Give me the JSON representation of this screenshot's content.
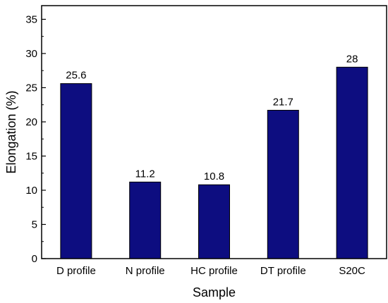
{
  "chart_data": {
    "type": "bar",
    "title": "",
    "xlabel": "Sample",
    "ylabel": "Elongation (%)",
    "categories": [
      "D profile",
      "N profile",
      "HC profile",
      "DT profile",
      "S20C"
    ],
    "values": [
      25.6,
      11.2,
      10.8,
      21.7,
      28
    ],
    "value_labels": [
      "25.6",
      "11.2",
      "10.8",
      "21.7",
      "28"
    ],
    "ylim": [
      0,
      37
    ],
    "yticks": [
      0,
      5,
      10,
      15,
      20,
      25,
      30,
      35
    ],
    "ytick_labels": [
      "0",
      "5",
      "10",
      "15",
      "20",
      "25",
      "30",
      "35"
    ],
    "grid": false,
    "legend": "none",
    "bar_color": "#0d0d80"
  }
}
